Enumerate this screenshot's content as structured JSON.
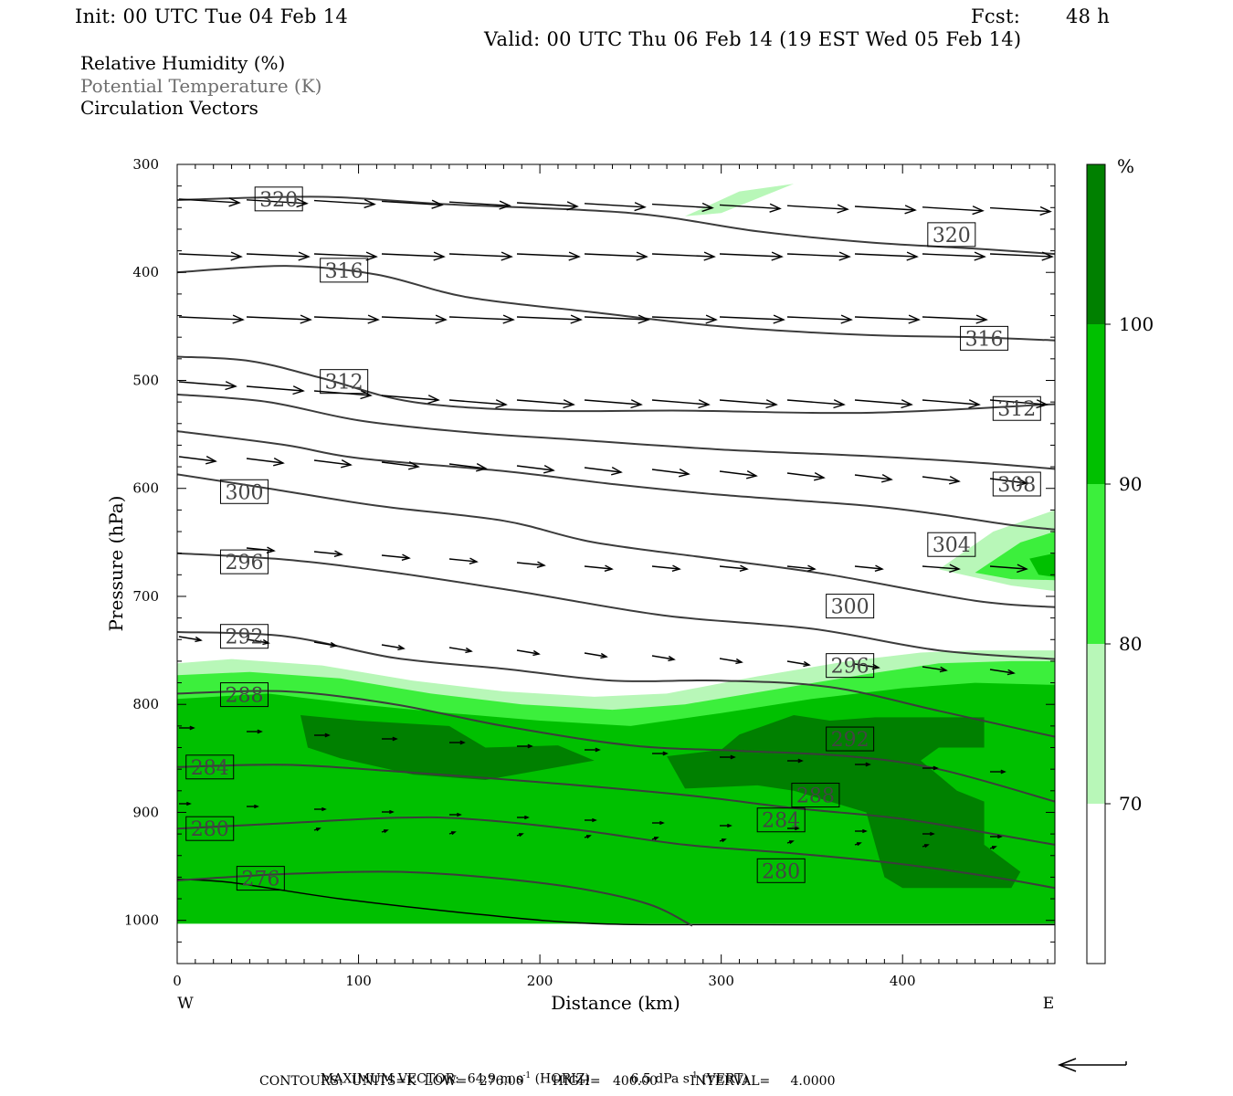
{
  "header": {
    "init": "Init: 00 UTC Tue 04 Feb 14",
    "fcst_label": "Fcst:",
    "fcst_value": "48 h",
    "valid": "Valid: 00 UTC Thu 06 Feb 14 (19 EST Wed 05 Feb 14)"
  },
  "legend": {
    "rh": "Relative Humidity (%)",
    "theta": "Potential Temperature (K)",
    "vectors": "Circulation Vectors"
  },
  "footer": {
    "max_vector_label": "MAXIMUM VECTOR:",
    "max_vector_horiz": "64.9 m s",
    "horiz_suffix": "(HORIZ)",
    "max_vector_vert": "6.5 dPa s",
    "vert_suffix": "(VERT)",
    "superscript": "-1",
    "contours": "CONTOURS:  UNITS=K  LOW=   276.00       HIGH=   400.00        INTERVAL=     4.0000"
  },
  "chart_data": {
    "type": "cross-section",
    "xlabel": "Distance (km)",
    "ylabel": "Pressure (hPa)",
    "x_ticks": [
      0,
      100,
      200,
      300,
      400
    ],
    "y_ticks": [
      300,
      400,
      500,
      600,
      700,
      800,
      900,
      1000
    ],
    "xlim": [
      0,
      484
    ],
    "ylim": [
      1040,
      300
    ],
    "x_end_labels": {
      "left": "W",
      "right": "E"
    },
    "colorbar": {
      "unit": "%",
      "levels": [
        70,
        80,
        90,
        100
      ],
      "colors": [
        "#ffffff",
        "#b8f7b8",
        "#3cef3c",
        "#00c000",
        "#008000"
      ]
    },
    "humidity_regions": [
      {
        "level": "70-80",
        "color": "#b8f7b8",
        "points": [
          [
            0,
            762
          ],
          [
            30,
            758
          ],
          [
            80,
            764
          ],
          [
            130,
            778
          ],
          [
            180,
            788
          ],
          [
            230,
            793
          ],
          [
            270,
            790
          ],
          [
            320,
            774
          ],
          [
            370,
            760
          ],
          [
            410,
            752
          ],
          [
            440,
            750
          ],
          [
            484,
            750
          ],
          [
            484,
            1003
          ],
          [
            0,
            1003
          ]
        ]
      },
      {
        "level": "80-90",
        "color": "#3cef3c",
        "points": [
          [
            0,
            773
          ],
          [
            40,
            770
          ],
          [
            90,
            776
          ],
          [
            140,
            790
          ],
          [
            190,
            800
          ],
          [
            240,
            805
          ],
          [
            280,
            800
          ],
          [
            330,
            786
          ],
          [
            380,
            772
          ],
          [
            420,
            762
          ],
          [
            460,
            760
          ],
          [
            484,
            760
          ],
          [
            484,
            1003
          ],
          [
            0,
            1003
          ]
        ]
      },
      {
        "level": "90-100",
        "color": "#00c000",
        "points": [
          [
            0,
            795
          ],
          [
            50,
            790
          ],
          [
            100,
            800
          ],
          [
            150,
            808
          ],
          [
            200,
            815
          ],
          [
            250,
            820
          ],
          [
            300,
            808
          ],
          [
            350,
            795
          ],
          [
            400,
            785
          ],
          [
            440,
            780
          ],
          [
            484,
            782
          ],
          [
            484,
            1003
          ],
          [
            0,
            1003
          ]
        ]
      },
      {
        "level": ">100",
        "color": "#008000",
        "points": [
          [
            68,
            810
          ],
          [
            100,
            815
          ],
          [
            150,
            820
          ],
          [
            170,
            840
          ],
          [
            210,
            838
          ],
          [
            230,
            852
          ],
          [
            170,
            870
          ],
          [
            130,
            865
          ],
          [
            90,
            850
          ],
          [
            72,
            840
          ]
        ]
      },
      {
        "level": ">100",
        "color": "#008000",
        "points": [
          [
            270,
            848
          ],
          [
            300,
            842
          ],
          [
            310,
            828
          ],
          [
            340,
            810
          ],
          [
            360,
            815
          ],
          [
            385,
            812
          ],
          [
            445,
            812
          ],
          [
            445,
            840
          ],
          [
            420,
            840
          ],
          [
            410,
            852
          ],
          [
            430,
            880
          ],
          [
            445,
            890
          ],
          [
            445,
            930
          ],
          [
            465,
            955
          ],
          [
            460,
            970
          ],
          [
            400,
            970
          ],
          [
            390,
            960
          ],
          [
            385,
            930
          ],
          [
            380,
            900
          ],
          [
            340,
            880
          ],
          [
            320,
            875
          ],
          [
            280,
            878
          ]
        ]
      },
      {
        "level": "70-80",
        "color": "#b8f7b8",
        "points": [
          [
            280,
            348
          ],
          [
            310,
            325
          ],
          [
            340,
            318
          ],
          [
            300,
            345
          ]
        ]
      },
      {
        "level": "70-80",
        "color": "#b8f7b8",
        "points": [
          [
            420,
            675
          ],
          [
            450,
            640
          ],
          [
            484,
            620
          ],
          [
            484,
            695
          ],
          [
            460,
            690
          ]
        ]
      },
      {
        "level": "80-90",
        "color": "#3cef3c",
        "points": [
          [
            440,
            678
          ],
          [
            465,
            650
          ],
          [
            484,
            640
          ],
          [
            484,
            685
          ],
          [
            460,
            684
          ]
        ]
      },
      {
        "level": "90-100",
        "color": "#00c000",
        "points": [
          [
            470,
            665
          ],
          [
            484,
            660
          ],
          [
            484,
            682
          ],
          [
            475,
            680
          ]
        ]
      }
    ],
    "theta_contours": [
      {
        "value": 320,
        "label_at": [
          56,
          332
        ],
        "points": [
          [
            0,
            333
          ],
          [
            80,
            330
          ],
          [
            150,
            337
          ],
          [
            250,
            345
          ],
          [
            320,
            362
          ],
          [
            380,
            372
          ],
          [
            440,
            378
          ],
          [
            484,
            383
          ]
        ]
      },
      {
        "value": 320,
        "label_at": [
          427,
          365
        ],
        "points": []
      },
      {
        "value": 316,
        "label_at": [
          92,
          398
        ],
        "points": [
          [
            0,
            400
          ],
          [
            60,
            394
          ],
          [
            110,
            402
          ],
          [
            160,
            423
          ],
          [
            230,
            437
          ],
          [
            300,
            450
          ],
          [
            380,
            458
          ],
          [
            440,
            460
          ],
          [
            484,
            463
          ]
        ]
      },
      {
        "value": 316,
        "label_at": [
          445,
          461
        ],
        "points": []
      },
      {
        "value": 312,
        "label_at": [
          92,
          501
        ],
        "points": [
          [
            0,
            478
          ],
          [
            40,
            482
          ],
          [
            80,
            498
          ],
          [
            130,
            520
          ],
          [
            200,
            528
          ],
          [
            280,
            528
          ],
          [
            380,
            530
          ],
          [
            484,
            522
          ]
        ]
      },
      {
        "value": 312,
        "label_at": [
          463,
          526
        ],
        "points": []
      },
      {
        "value": 308,
        "label_at": [
          463,
          596
        ],
        "points": [
          [
            0,
            513
          ],
          [
            50,
            520
          ],
          [
            100,
            537
          ],
          [
            160,
            548
          ],
          [
            220,
            555
          ],
          [
            300,
            564
          ],
          [
            380,
            570
          ],
          [
            440,
            576
          ],
          [
            484,
            582
          ]
        ]
      },
      {
        "value": 304,
        "label_at": [
          427,
          652
        ],
        "points": [
          [
            0,
            547
          ],
          [
            60,
            560
          ],
          [
            100,
            572
          ],
          [
            180,
            584
          ],
          [
            240,
            596
          ],
          [
            300,
            606
          ],
          [
            380,
            616
          ],
          [
            420,
            624
          ],
          [
            460,
            634
          ],
          [
            484,
            638
          ]
        ]
      },
      {
        "value": 300,
        "label_at": [
          37,
          603
        ],
        "points": [
          [
            0,
            587
          ],
          [
            50,
            600
          ],
          [
            110,
            616
          ],
          [
            180,
            630
          ],
          [
            230,
            650
          ],
          [
            300,
            666
          ],
          [
            360,
            680
          ],
          [
            440,
            704
          ],
          [
            484,
            710
          ]
        ]
      },
      {
        "value": 300,
        "label_at": [
          371,
          709
        ],
        "points": []
      },
      {
        "value": 296,
        "label_at": [
          37,
          668
        ],
        "points": [
          [
            0,
            660
          ],
          [
            60,
            666
          ],
          [
            120,
            678
          ],
          [
            190,
            696
          ],
          [
            270,
            718
          ],
          [
            350,
            730
          ],
          [
            420,
            750
          ],
          [
            484,
            758
          ]
        ]
      },
      {
        "value": 296,
        "label_at": [
          371,
          764
        ],
        "points": []
      },
      {
        "value": 292,
        "label_at": [
          37,
          737
        ],
        "points": [
          [
            0,
            733
          ],
          [
            60,
            737
          ],
          [
            120,
            757
          ],
          [
            180,
            767
          ],
          [
            240,
            778
          ],
          [
            300,
            778
          ],
          [
            360,
            784
          ],
          [
            420,
            806
          ],
          [
            484,
            830
          ]
        ]
      },
      {
        "value": 292,
        "label_at": [
          371,
          832
        ],
        "points": []
      },
      {
        "value": 288,
        "label_at": [
          37,
          791
        ],
        "points": [
          [
            0,
            790
          ],
          [
            60,
            788
          ],
          [
            120,
            800
          ],
          [
            180,
            820
          ],
          [
            250,
            838
          ],
          [
            310,
            843
          ],
          [
            370,
            848
          ],
          [
            420,
            860
          ],
          [
            484,
            890
          ]
        ]
      },
      {
        "value": 288,
        "label_at": [
          352,
          884
        ],
        "points": []
      },
      {
        "value": 284,
        "label_at": [
          18,
          858
        ],
        "points": [
          [
            0,
            858
          ],
          [
            60,
            856
          ],
          [
            120,
            862
          ],
          [
            200,
            872
          ],
          [
            280,
            884
          ],
          [
            340,
            896
          ],
          [
            400,
            906
          ],
          [
            450,
            920
          ],
          [
            484,
            930
          ]
        ]
      },
      {
        "value": 284,
        "label_at": [
          333,
          907
        ],
        "points": []
      },
      {
        "value": 280,
        "label_at": [
          18,
          915
        ],
        "points": [
          [
            0,
            915
          ],
          [
            60,
            910
          ],
          [
            120,
            905
          ],
          [
            160,
            906
          ],
          [
            220,
            916
          ],
          [
            280,
            930
          ],
          [
            340,
            938
          ],
          [
            400,
            948
          ],
          [
            450,
            960
          ],
          [
            484,
            970
          ]
        ]
      },
      {
        "value": 280,
        "label_at": [
          333,
          954
        ],
        "points": []
      },
      {
        "value": 276,
        "label_at": [
          46,
          961
        ],
        "points": [
          [
            0,
            963
          ],
          [
            60,
            957
          ],
          [
            120,
            955
          ],
          [
            170,
            960
          ],
          [
            220,
            970
          ],
          [
            260,
            985
          ],
          [
            284,
            1005
          ]
        ]
      }
    ],
    "ground": {
      "points": [
        [
          0,
          962
        ],
        [
          30,
          965
        ],
        [
          90,
          980
        ],
        [
          170,
          995
        ],
        [
          230,
          1003
        ],
        [
          300,
          1004
        ],
        [
          484,
          1004
        ]
      ]
    }
  }
}
